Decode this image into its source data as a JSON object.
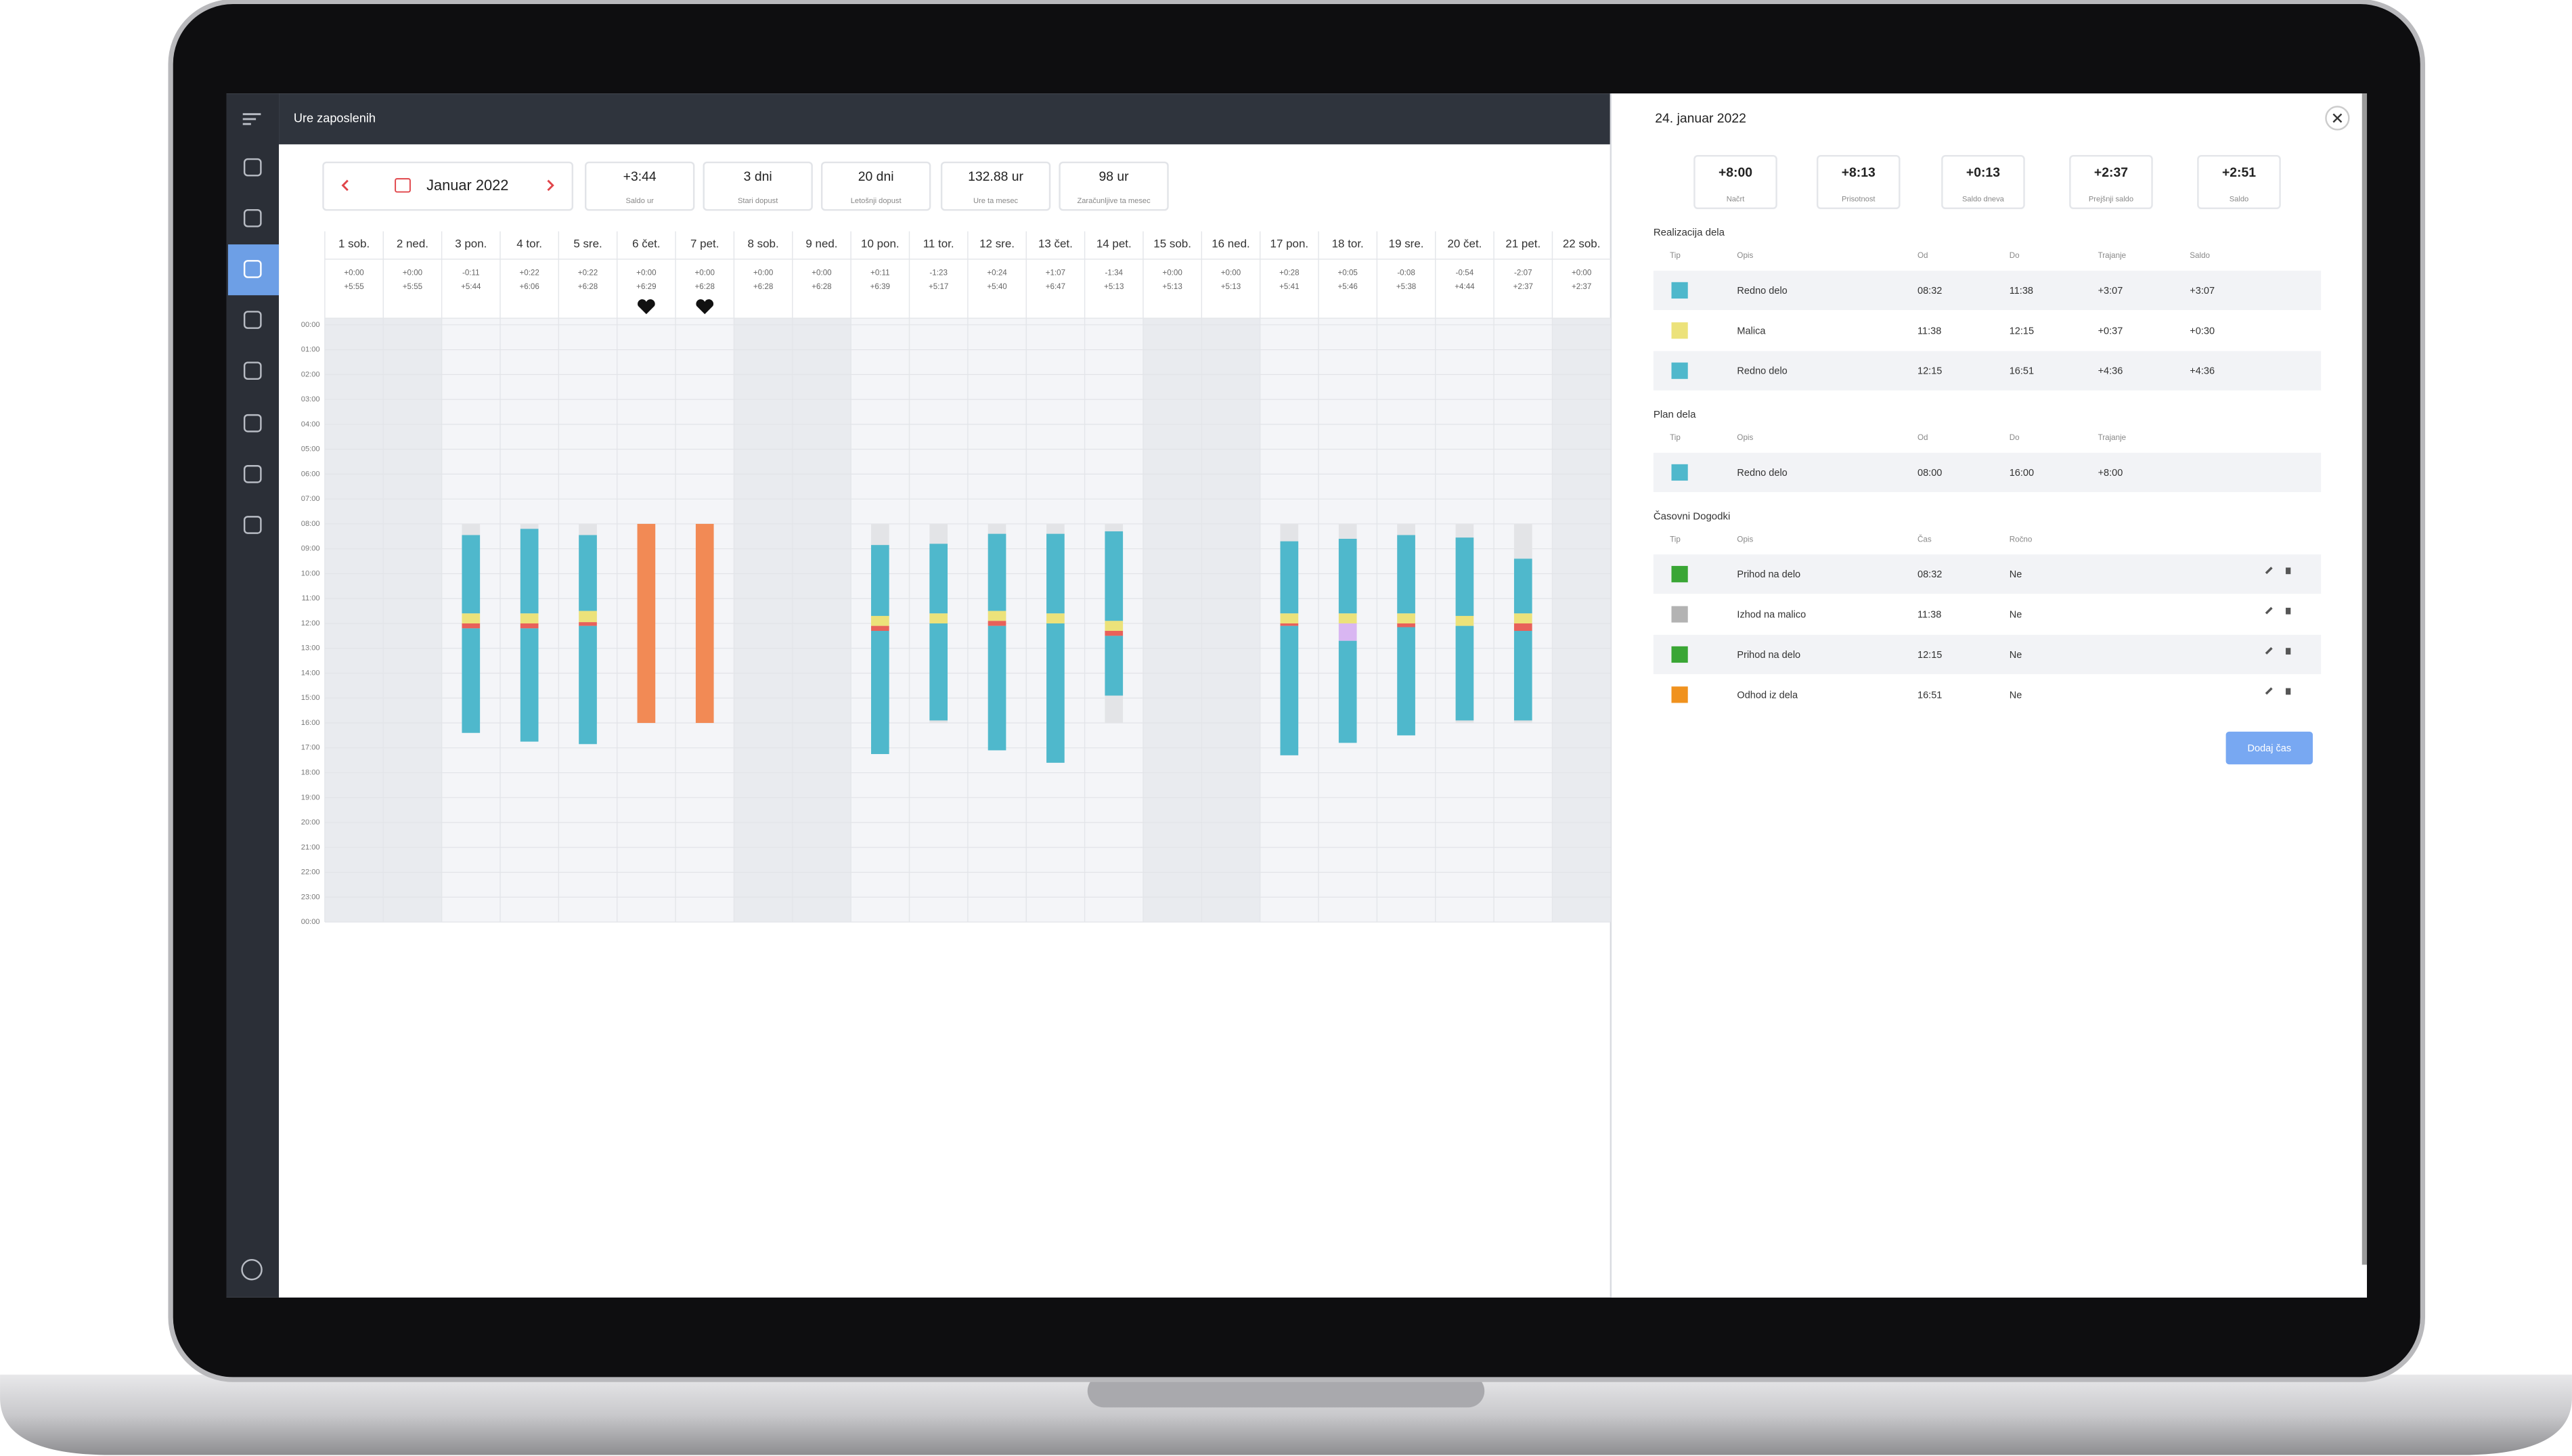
{
  "app": {
    "title": "Ure zaposlenih"
  },
  "toolbar": {
    "month": "Januar 2022",
    "stats": [
      {
        "value": "+3:44",
        "label": "Saldo ur"
      },
      {
        "value": "3 dni",
        "label": "Stari dopust"
      },
      {
        "value": "20 dni",
        "label": "Letošnji dopust"
      },
      {
        "value": "132.88 ur",
        "label": "Ure ta mesec"
      },
      {
        "value": "98 ur",
        "label": "Zaračunljive ta mesec"
      }
    ]
  },
  "calendar": {
    "hours": [
      "00:00",
      "01:00",
      "02:00",
      "03:00",
      "04:00",
      "05:00",
      "06:00",
      "07:00",
      "08:00",
      "09:00",
      "10:00",
      "11:00",
      "12:00",
      "13:00",
      "14:00",
      "15:00",
      "16:00",
      "17:00",
      "18:00",
      "19:00",
      "20:00",
      "21:00",
      "22:00",
      "23:00",
      "00:00"
    ],
    "days": [
      {
        "label": "1 sob.",
        "diff": "+0:00",
        "total": "+5:55",
        "weekend": true,
        "heart": false,
        "plan": null,
        "segments": []
      },
      {
        "label": "2 ned.",
        "diff": "+0:00",
        "total": "+5:55",
        "weekend": true,
        "heart": false,
        "plan": null,
        "segments": []
      },
      {
        "label": "3 pon.",
        "diff": "-0:11",
        "total": "+5:44",
        "weekend": false,
        "heart": false,
        "plan": [
          8,
          16
        ],
        "segments": [
          {
            "from": 8.45,
            "to": 11.6,
            "color": "#4fb8cc"
          },
          {
            "from": 11.6,
            "to": 12.0,
            "color": "#ece27a"
          },
          {
            "from": 12.0,
            "to": 12.2,
            "color": "#e8615a"
          },
          {
            "from": 12.2,
            "to": 16.4,
            "color": "#4fb8cc"
          }
        ]
      },
      {
        "label": "4 tor.",
        "diff": "+0:22",
        "total": "+6:06",
        "weekend": false,
        "heart": false,
        "plan": [
          8,
          16
        ],
        "segments": [
          {
            "from": 8.2,
            "to": 11.6,
            "color": "#4fb8cc"
          },
          {
            "from": 11.6,
            "to": 12.0,
            "color": "#ece27a"
          },
          {
            "from": 12.0,
            "to": 12.2,
            "color": "#e8615a"
          },
          {
            "from": 12.2,
            "to": 16.75,
            "color": "#4fb8cc"
          }
        ]
      },
      {
        "label": "5 sre.",
        "diff": "+0:22",
        "total": "+6:28",
        "weekend": false,
        "heart": false,
        "plan": [
          8,
          16
        ],
        "segments": [
          {
            "from": 8.45,
            "to": 11.5,
            "color": "#4fb8cc"
          },
          {
            "from": 11.5,
            "to": 11.95,
            "color": "#ece27a"
          },
          {
            "from": 11.95,
            "to": 12.1,
            "color": "#e8615a"
          },
          {
            "from": 12.1,
            "to": 16.85,
            "color": "#4fb8cc"
          }
        ]
      },
      {
        "label": "6 čet.",
        "diff": "+0:00",
        "total": "+6:29",
        "weekend": false,
        "heart": true,
        "plan": null,
        "segments": [
          {
            "from": 8,
            "to": 16,
            "color": "#f28a55"
          }
        ]
      },
      {
        "label": "7 pet.",
        "diff": "+0:00",
        "total": "+6:28",
        "weekend": false,
        "heart": true,
        "plan": null,
        "segments": [
          {
            "from": 8,
            "to": 16,
            "color": "#f28a55"
          }
        ]
      },
      {
        "label": "8 sob.",
        "diff": "+0:00",
        "total": "+6:28",
        "weekend": true,
        "heart": false,
        "plan": null,
        "segments": []
      },
      {
        "label": "9 ned.",
        "diff": "+0:00",
        "total": "+6:28",
        "weekend": true,
        "heart": false,
        "plan": null,
        "segments": []
      },
      {
        "label": "10 pon.",
        "diff": "+0:11",
        "total": "+6:39",
        "weekend": false,
        "heart": false,
        "plan": [
          8,
          16
        ],
        "segments": [
          {
            "from": 8.85,
            "to": 11.7,
            "color": "#4fb8cc"
          },
          {
            "from": 11.7,
            "to": 12.1,
            "color": "#ece27a"
          },
          {
            "from": 12.1,
            "to": 12.3,
            "color": "#e8615a"
          },
          {
            "from": 12.3,
            "to": 17.25,
            "color": "#4fb8cc"
          }
        ]
      },
      {
        "label": "11 tor.",
        "diff": "-1:23",
        "total": "+5:17",
        "weekend": false,
        "heart": false,
        "plan": [
          8,
          16
        ],
        "segments": [
          {
            "from": 8.8,
            "to": 11.6,
            "color": "#4fb8cc"
          },
          {
            "from": 11.6,
            "to": 12.0,
            "color": "#ece27a"
          },
          {
            "from": 12.0,
            "to": 15.9,
            "color": "#4fb8cc"
          }
        ]
      },
      {
        "label": "12 sre.",
        "diff": "+0:24",
        "total": "+5:40",
        "weekend": false,
        "heart": false,
        "plan": [
          8,
          16
        ],
        "segments": [
          {
            "from": 8.4,
            "to": 11.5,
            "color": "#4fb8cc"
          },
          {
            "from": 11.5,
            "to": 11.9,
            "color": "#ece27a"
          },
          {
            "from": 11.9,
            "to": 12.1,
            "color": "#e8615a"
          },
          {
            "from": 12.1,
            "to": 17.1,
            "color": "#4fb8cc"
          }
        ]
      },
      {
        "label": "13 čet.",
        "diff": "+1:07",
        "total": "+6:47",
        "weekend": false,
        "heart": false,
        "plan": [
          8,
          16
        ],
        "segments": [
          {
            "from": 8.4,
            "to": 11.6,
            "color": "#4fb8cc"
          },
          {
            "from": 11.6,
            "to": 12.0,
            "color": "#ece27a"
          },
          {
            "from": 12.0,
            "to": 17.6,
            "color": "#4fb8cc"
          }
        ]
      },
      {
        "label": "14 pet.",
        "diff": "-1:34",
        "total": "+5:13",
        "weekend": false,
        "heart": false,
        "plan": [
          8,
          16
        ],
        "segments": [
          {
            "from": 8.3,
            "to": 11.9,
            "color": "#4fb8cc"
          },
          {
            "from": 11.9,
            "to": 12.3,
            "color": "#ece27a"
          },
          {
            "from": 12.3,
            "to": 12.5,
            "color": "#e8615a"
          },
          {
            "from": 12.5,
            "to": 14.9,
            "color": "#4fb8cc"
          }
        ]
      },
      {
        "label": "15 sob.",
        "diff": "+0:00",
        "total": "+5:13",
        "weekend": true,
        "heart": false,
        "plan": null,
        "segments": []
      },
      {
        "label": "16 ned.",
        "diff": "+0:00",
        "total": "+5:13",
        "weekend": true,
        "heart": false,
        "plan": null,
        "segments": []
      },
      {
        "label": "17 pon.",
        "diff": "+0:28",
        "total": "+5:41",
        "weekend": false,
        "heart": false,
        "plan": [
          8,
          16
        ],
        "segments": [
          {
            "from": 8.7,
            "to": 11.6,
            "color": "#4fb8cc"
          },
          {
            "from": 11.6,
            "to": 12.0,
            "color": "#ece27a"
          },
          {
            "from": 12.0,
            "to": 12.1,
            "color": "#e8615a"
          },
          {
            "from": 12.1,
            "to": 17.3,
            "color": "#4fb8cc"
          }
        ]
      },
      {
        "label": "18 tor.",
        "diff": "+0:05",
        "total": "+5:46",
        "weekend": false,
        "heart": false,
        "plan": [
          8,
          16
        ],
        "segments": [
          {
            "from": 8.6,
            "to": 11.6,
            "color": "#4fb8cc"
          },
          {
            "from": 11.6,
            "to": 12.0,
            "color": "#ece27a"
          },
          {
            "from": 12.0,
            "to": 12.7,
            "color": "#d9b6f2"
          },
          {
            "from": 12.7,
            "to": 16.8,
            "color": "#4fb8cc"
          }
        ]
      },
      {
        "label": "19 sre.",
        "diff": "-0:08",
        "total": "+5:38",
        "weekend": false,
        "heart": false,
        "plan": [
          8,
          16
        ],
        "segments": [
          {
            "from": 8.45,
            "to": 11.6,
            "color": "#4fb8cc"
          },
          {
            "from": 11.6,
            "to": 12.0,
            "color": "#ece27a"
          },
          {
            "from": 12.0,
            "to": 12.15,
            "color": "#e8615a"
          },
          {
            "from": 12.15,
            "to": 16.5,
            "color": "#4fb8cc"
          }
        ]
      },
      {
        "label": "20 čet.",
        "diff": "-0:54",
        "total": "+4:44",
        "weekend": false,
        "heart": false,
        "plan": [
          8,
          16
        ],
        "segments": [
          {
            "from": 8.55,
            "to": 11.7,
            "color": "#4fb8cc"
          },
          {
            "from": 11.7,
            "to": 12.1,
            "color": "#ece27a"
          },
          {
            "from": 12.1,
            "to": 15.9,
            "color": "#4fb8cc"
          }
        ]
      },
      {
        "label": "21 pet.",
        "diff": "-2:07",
        "total": "+2:37",
        "weekend": false,
        "heart": false,
        "plan": [
          8,
          16
        ],
        "segments": [
          {
            "from": 9.4,
            "to": 11.6,
            "color": "#4fb8cc"
          },
          {
            "from": 11.6,
            "to": 12.0,
            "color": "#ece27a"
          },
          {
            "from": 12.0,
            "to": 12.3,
            "color": "#e8615a"
          },
          {
            "from": 12.3,
            "to": 15.9,
            "color": "#4fb8cc"
          }
        ]
      },
      {
        "label": "22 sob.",
        "diff": "+0:00",
        "total": "+2:37",
        "weekend": true,
        "heart": false,
        "plan": null,
        "segments": []
      }
    ]
  },
  "panel": {
    "title": "24. januar 2022",
    "summary": [
      {
        "value": "+8:00",
        "label": "Načrt"
      },
      {
        "value": "+8:13",
        "label": "Prisotnost"
      },
      {
        "value": "+0:13",
        "label": "Saldo dneva"
      },
      {
        "value": "+2:37",
        "label": "Prejšnji saldo"
      },
      {
        "value": "+2:51",
        "label": "Saldo"
      }
    ],
    "sections": [
      {
        "title": "Realizacija dela",
        "headers": [
          "Tip",
          "Opis",
          "Od",
          "Do",
          "Trajanje",
          "Saldo"
        ],
        "actions": false,
        "rows": [
          {
            "color": "#4fb8cc",
            "cells": [
              "Redno delo",
              "08:32",
              "11:38",
              "+3:07",
              "+3:07"
            ]
          },
          {
            "color": "#ece27a",
            "cells": [
              "Malica",
              "11:38",
              "12:15",
              "+0:37",
              "+0:30"
            ]
          },
          {
            "color": "#4fb8cc",
            "cells": [
              "Redno delo",
              "12:15",
              "16:51",
              "+4:36",
              "+4:36"
            ]
          }
        ]
      },
      {
        "title": "Plan dela",
        "headers": [
          "Tip",
          "Opis",
          "Od",
          "Do",
          "Trajanje"
        ],
        "actions": false,
        "rows": [
          {
            "color": "#4fb8cc",
            "cells": [
              "Redno delo",
              "08:00",
              "16:00",
              "+8:00"
            ]
          }
        ]
      },
      {
        "title": "Časovni Dogodki",
        "headers": [
          "Tip",
          "Opis",
          "Čas",
          "Ročno"
        ],
        "actions": true,
        "rows": [
          {
            "color": "#3aa635",
            "cells": [
              "Prihod na delo",
              "08:32",
              "Ne"
            ]
          },
          {
            "color": "#b3b3b3",
            "cells": [
              "Izhod na malico",
              "11:38",
              "Ne"
            ]
          },
          {
            "color": "#3aa635",
            "cells": [
              "Prihod na delo",
              "12:15",
              "Ne"
            ]
          },
          {
            "color": "#f0921e",
            "cells": [
              "Odhod iz dela",
              "16:51",
              "Ne"
            ]
          }
        ]
      }
    ],
    "button": "Dodaj čas"
  }
}
